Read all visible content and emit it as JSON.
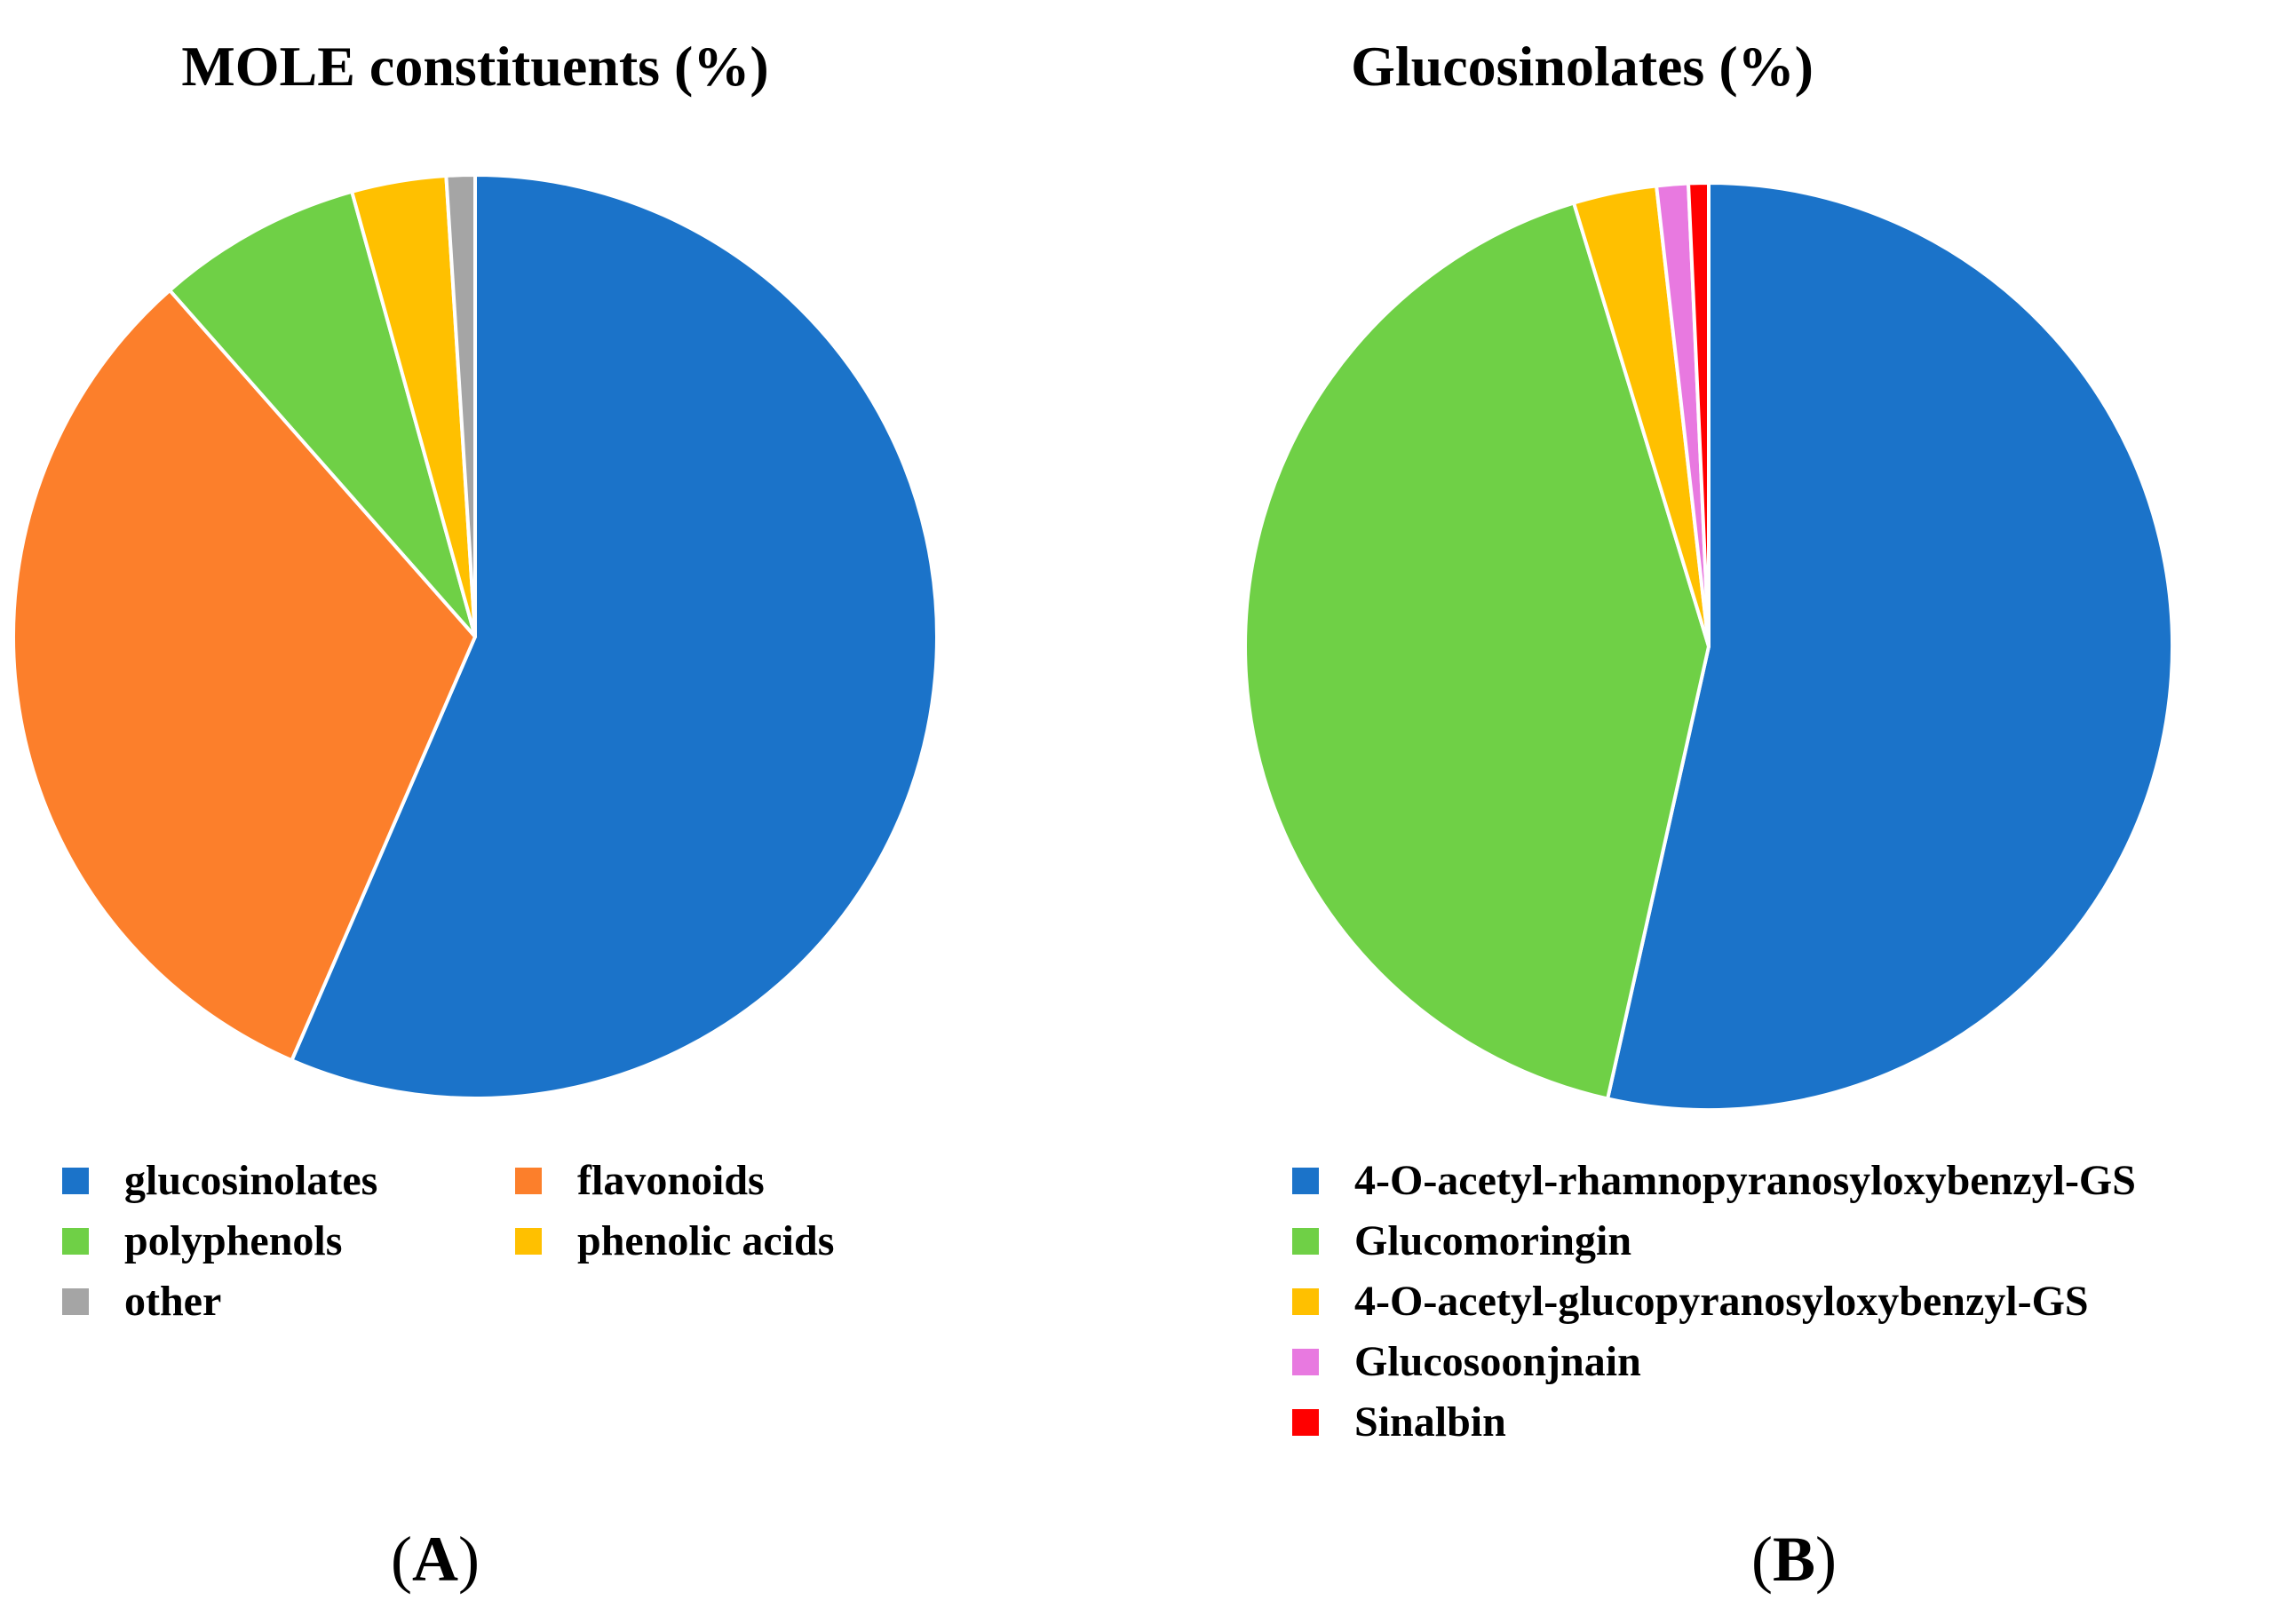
{
  "panels": {
    "a": {
      "letter": "A",
      "open": "(",
      "close": ")"
    },
    "b": {
      "letter": "B",
      "open": "(",
      "close": ")"
    }
  },
  "chart_data": [
    {
      "type": "pie",
      "title": "MOLE constituents (%)",
      "start_angle_deg": 0,
      "direction": "clockwise",
      "slices": [
        {
          "label": "glucosinolates",
          "value": 56.5,
          "color": "#1b73c9"
        },
        {
          "label": "flavonoids",
          "value": 32.0,
          "color": "#fc7f2b"
        },
        {
          "label": "polyphenols",
          "value": 7.2,
          "color": "#6fd046"
        },
        {
          "label": "phenolic acids",
          "value": 3.3,
          "color": "#ffc000"
        },
        {
          "label": "other",
          "value": 1.0,
          "color": "#a5a5a5"
        }
      ]
    },
    {
      "type": "pie",
      "title": "Glucosinolates (%)",
      "start_angle_deg": 0,
      "direction": "clockwise",
      "slices": [
        {
          "label": "4-O-acetyl-rhamnopyranosyloxybenzyl-GS",
          "value": 53.5,
          "color": "#1b73c9"
        },
        {
          "label": "Glucomoringin",
          "value": 41.8,
          "color": "#6fd046"
        },
        {
          "label": "4-O-acetyl-glucopyranosyloxybenzyl-GS",
          "value": 2.9,
          "color": "#ffc000"
        },
        {
          "label": "Glucosoonjnain",
          "value": 1.1,
          "color": "#e879e0"
        },
        {
          "label": "Sinalbin",
          "value": 0.7,
          "color": "#ff0000"
        }
      ]
    }
  ]
}
